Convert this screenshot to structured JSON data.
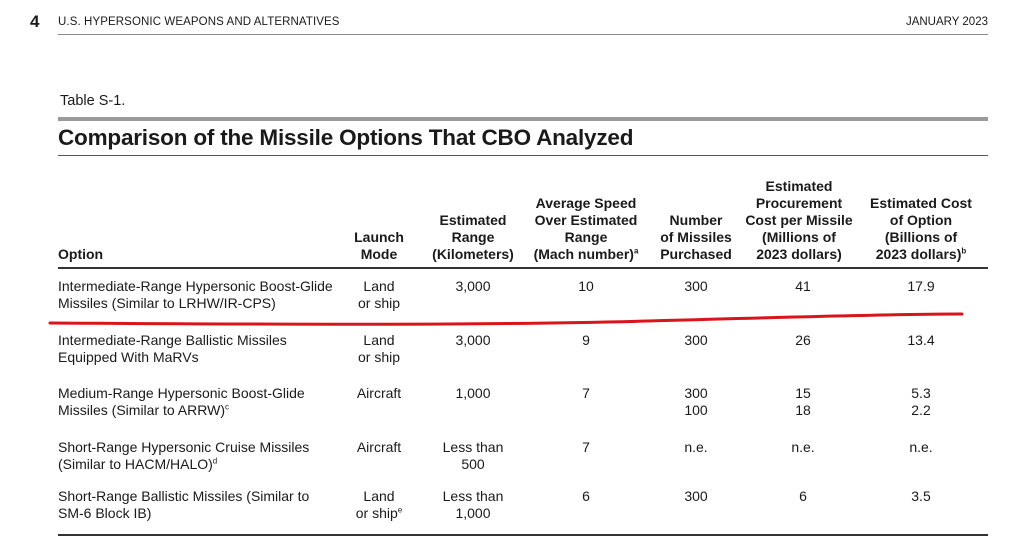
{
  "header": {
    "page_number": "4",
    "running_title": "U.S. HYPERSONIC WEAPONS AND ALTERNATIVES",
    "date": "JANUARY 2023"
  },
  "table": {
    "label": "Table S-1.",
    "title": "Comparison of the Missile Options That CBO Analyzed",
    "columns": {
      "option": "Option",
      "launch_1": "Launch",
      "launch_2": "Mode",
      "range_1": "Estimated",
      "range_2": "Range",
      "range_3": "(Kilometers)",
      "speed_1": "Average Speed",
      "speed_2": "Over Estimated",
      "speed_3": "Range",
      "speed_4": "(Mach number)",
      "speed_sup": "a",
      "num_1": "Number",
      "num_2": "of Missiles",
      "num_3": "Purchased",
      "proc_1": "Estimated",
      "proc_2": "Procurement",
      "proc_3": "Cost per Missile",
      "proc_4": "(Millions of",
      "proc_5": "2023 dollars)",
      "cost_1": "Estimated Cost",
      "cost_2": "of Option",
      "cost_3": "(Billions of",
      "cost_4": "2023 dollars)",
      "cost_sup": "b"
    },
    "rows": [
      {
        "option_1": "Intermediate-Range Hypersonic Boost-Glide",
        "option_2": "Missiles (Similar to LRHW/IR-CPS)",
        "launch_1": "Land",
        "launch_2": "or ship",
        "range_1": "3,000",
        "speed": "10",
        "number_1": "300",
        "proc_1": "41",
        "cost_1": "17.9"
      },
      {
        "option_1": "Intermediate-Range Ballistic Missiles",
        "option_2": "Equipped With MaRVs",
        "launch_1": "Land",
        "launch_2": "or ship",
        "range_1": "3,000",
        "speed": "9",
        "number_1": "300",
        "proc_1": "26",
        "cost_1": "13.4"
      },
      {
        "option_1": "Medium-Range Hypersonic Boost-Glide",
        "option_2": "Missiles (Similar to ARRW)",
        "option_sup": "c",
        "launch_1": "Aircraft",
        "range_1": "1,000",
        "speed": "7",
        "number_1": "300",
        "number_2": "100",
        "proc_1": "15",
        "proc_2": "18",
        "cost_1": "5.3",
        "cost_2": "2.2"
      },
      {
        "option_1": "Short-Range Hypersonic Cruise Missiles",
        "option_2": "(Similar to HACM/HALO)",
        "option_sup": "d",
        "launch_1": "Aircraft",
        "range_1": "Less than",
        "range_2": "500",
        "speed": "7",
        "number_1": "n.e.",
        "proc_1": "n.e.",
        "cost_1": "n.e."
      },
      {
        "option_1": "Short-Range Ballistic Missiles (Similar to",
        "option_2": "SM-6 Block IB)",
        "launch_1": "Land",
        "launch_2": "or ship",
        "launch_sup": "e",
        "range_1": "Less than",
        "range_2": "1,000",
        "speed": "6",
        "number_1": "300",
        "proc_1": "6",
        "cost_1": "3.5"
      }
    ]
  },
  "annotation_color": "#d9141b"
}
